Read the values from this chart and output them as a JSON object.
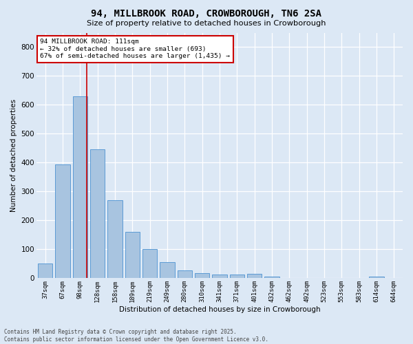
{
  "title": "94, MILLBROOK ROAD, CROWBOROUGH, TN6 2SA",
  "subtitle": "Size of property relative to detached houses in Crowborough",
  "xlabel": "Distribution of detached houses by size in Crowborough",
  "ylabel": "Number of detached properties",
  "categories": [
    "37sqm",
    "67sqm",
    "98sqm",
    "128sqm",
    "158sqm",
    "189sqm",
    "219sqm",
    "249sqm",
    "280sqm",
    "310sqm",
    "341sqm",
    "371sqm",
    "401sqm",
    "432sqm",
    "462sqm",
    "492sqm",
    "523sqm",
    "553sqm",
    "583sqm",
    "614sqm",
    "644sqm"
  ],
  "values": [
    50,
    393,
    630,
    447,
    270,
    160,
    100,
    55,
    28,
    18,
    14,
    12,
    15,
    5,
    0,
    0,
    0,
    0,
    0,
    6,
    0
  ],
  "bar_color": "#a8c4e0",
  "bar_edge_color": "#5b9bd5",
  "vline_color": "#cc0000",
  "annotation_text": "94 MILLBROOK ROAD: 111sqm\n← 32% of detached houses are smaller (693)\n67% of semi-detached houses are larger (1,435) →",
  "annotation_box_color": "#ffffff",
  "annotation_box_edge": "#cc0000",
  "ylim": [
    0,
    850
  ],
  "yticks": [
    0,
    100,
    200,
    300,
    400,
    500,
    600,
    700,
    800
  ],
  "bg_color": "#dce8f5",
  "grid_color": "#ffffff",
  "footer_line1": "Contains HM Land Registry data © Crown copyright and database right 2025.",
  "footer_line2": "Contains public sector information licensed under the Open Government Licence v3.0."
}
